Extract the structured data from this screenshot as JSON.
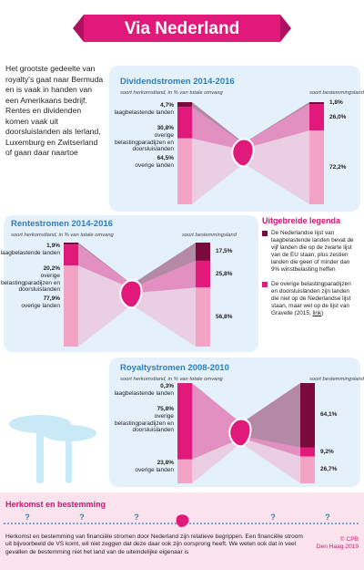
{
  "header": {
    "title": "Via Nederland"
  },
  "intro": "Het grootste gedeelte van royalty's gaat naar Bermuda en is vaak in handen van een Amerikaans bedrijf. Rentes en dividenden komen vaak uit doorsluislanden als Ierland, Luxemburg en Zwitserland of gaan daar naartoe",
  "chart_data": [
    {
      "type": "flow",
      "title": "Dividendstromen 2014-2016",
      "categories": [
        "soort herkomstland, in % van totale omvang",
        "soort bestemmingsland"
      ],
      "series": [
        {
          "name": "laagbelastende landen",
          "color": "#7a0a3c",
          "values": [
            4.7,
            1.8
          ],
          "value_labels": [
            "4,7%",
            "1,8%"
          ]
        },
        {
          "name": "overige belastingparadijzen en doorsluislanden",
          "color": "#e0197a",
          "values": [
            30.8,
            26.0
          ],
          "value_labels": [
            "30,8%",
            "26,0%"
          ]
        },
        {
          "name": "overige landen",
          "color": "#f2a3c6",
          "values": [
            64.5,
            72.2
          ],
          "value_labels": [
            "64,5%",
            "72,2%"
          ]
        }
      ]
    },
    {
      "type": "flow",
      "title": "Rentestromen 2014-2016",
      "categories": [
        "soort herkomstland, in % van totale omvang",
        "soort bestemmingsland"
      ],
      "series": [
        {
          "name": "laagbelastende landen",
          "color": "#7a0a3c",
          "values": [
            1.9,
            17.5
          ],
          "value_labels": [
            "1,9%",
            "17,5%"
          ]
        },
        {
          "name": "overige belastingparadijzen en doorsluislanden",
          "color": "#e0197a",
          "values": [
            20.2,
            25.8
          ],
          "value_labels": [
            "20,2%",
            "25,8%"
          ]
        },
        {
          "name": "overige landen",
          "color": "#f2a3c6",
          "values": [
            77.9,
            56.8
          ],
          "value_labels": [
            "77,9%",
            "56,8%"
          ]
        }
      ]
    },
    {
      "type": "flow",
      "title": "Royaltystromen 2008-2010",
      "categories": [
        "soort herkomstland, in % van totale omvang",
        "soort bestemmingsland"
      ],
      "series": [
        {
          "name": "laagbelastende landen",
          "color": "#7a0a3c",
          "values": [
            0.3,
            64.1
          ],
          "value_labels": [
            "0,3%",
            "64,1%"
          ]
        },
        {
          "name": "overige belastingparadijzen en doorsluislanden",
          "color": "#e0197a",
          "values": [
            75.8,
            9.2
          ],
          "value_labels": [
            "75,8%",
            "9,2%"
          ]
        },
        {
          "name": "overige landen",
          "color": "#f2a3c6",
          "values": [
            23.8,
            26.7
          ],
          "value_labels": [
            "23,8%",
            "26,7%"
          ]
        }
      ]
    }
  ],
  "legend": {
    "title": "Uitgebreide legenda",
    "items": [
      {
        "color": "#7a0a3c",
        "text": "De Nederlandse lijst van laagbelastende landen bevat de vijf landen die op de zwarte lijst van de EU staan, plus zestien landen die geen of minder dan 9% winstbelasting heffen"
      },
      {
        "color": "#e0197a",
        "text": "De overige belastingparadijzen en doorsluislanden zijn landen die niet op de Nederlandse lijst staan, maar wel op de lijst van Gravelle (2015,",
        "link": "link",
        "after": ")"
      }
    ]
  },
  "footer": {
    "title": "Herkomst en bestemming",
    "markers": [
      "?",
      "?",
      "?",
      "?",
      "?"
    ],
    "text": "Herkomst en bestemming van financiële stromen door Nederland zijn relatieve begrippen. Een financiële stroom uit bijvoorbeeld de VS komt, wil niet zeggen dat deze daar ook zijn oorsprong heeft. We weten ook dat in veel gevallen de bestemming niet het land van de uiteindelijke eigenaar is",
    "credit": "© CPB",
    "place": "Den Haag 2019"
  }
}
